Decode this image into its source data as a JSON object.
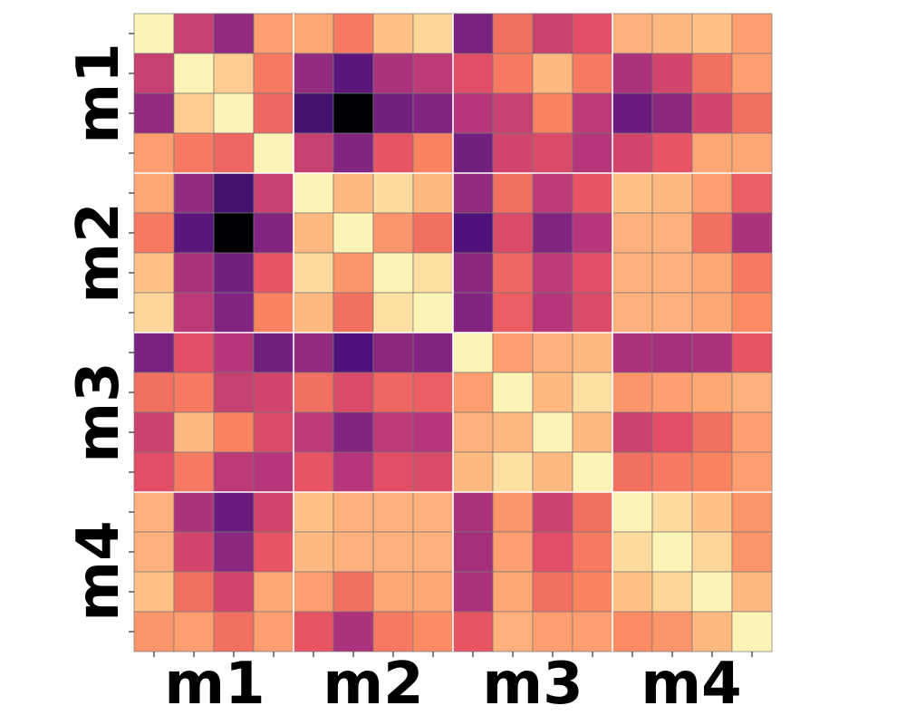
{
  "chart_data": {
    "type": "heatmap",
    "title": "",
    "xlabel": "",
    "ylabel": "",
    "colormap": "magma",
    "value_range": [
      0,
      1
    ],
    "block_labels": [
      "m1",
      "m2",
      "m3",
      "m4"
    ],
    "group_size": 4,
    "grid_color": "#777777",
    "block_separator_color": "#ffffff",
    "values": [
      [
        0.98,
        0.55,
        0.42,
        0.8,
        0.82,
        0.72,
        0.88,
        0.92,
        0.36,
        0.7,
        0.56,
        0.62,
        0.84,
        0.86,
        0.88,
        0.8
      ],
      [
        0.55,
        0.98,
        0.9,
        0.72,
        0.42,
        0.28,
        0.48,
        0.52,
        0.62,
        0.72,
        0.86,
        0.72,
        0.48,
        0.58,
        0.7,
        0.8
      ],
      [
        0.42,
        0.9,
        0.98,
        0.68,
        0.22,
        0.0,
        0.34,
        0.38,
        0.5,
        0.55,
        0.74,
        0.52,
        0.32,
        0.4,
        0.58,
        0.7
      ],
      [
        0.8,
        0.72,
        0.68,
        0.98,
        0.55,
        0.38,
        0.64,
        0.74,
        0.34,
        0.58,
        0.6,
        0.5,
        0.58,
        0.64,
        0.82,
        0.82
      ],
      [
        0.82,
        0.42,
        0.22,
        0.55,
        0.98,
        0.86,
        0.93,
        0.86,
        0.42,
        0.7,
        0.52,
        0.64,
        0.88,
        0.86,
        0.8,
        0.66
      ],
      [
        0.72,
        0.28,
        0.0,
        0.38,
        0.86,
        0.98,
        0.78,
        0.7,
        0.25,
        0.6,
        0.38,
        0.5,
        0.84,
        0.84,
        0.7,
        0.48
      ],
      [
        0.88,
        0.48,
        0.34,
        0.64,
        0.93,
        0.78,
        0.98,
        0.94,
        0.4,
        0.68,
        0.52,
        0.62,
        0.84,
        0.84,
        0.82,
        0.72
      ],
      [
        0.92,
        0.52,
        0.38,
        0.74,
        0.86,
        0.7,
        0.94,
        0.98,
        0.38,
        0.66,
        0.5,
        0.6,
        0.84,
        0.84,
        0.82,
        0.76
      ],
      [
        0.36,
        0.62,
        0.5,
        0.34,
        0.42,
        0.25,
        0.4,
        0.38,
        0.98,
        0.8,
        0.84,
        0.86,
        0.48,
        0.46,
        0.48,
        0.64
      ],
      [
        0.7,
        0.72,
        0.55,
        0.58,
        0.7,
        0.6,
        0.68,
        0.66,
        0.8,
        0.98,
        0.86,
        0.94,
        0.78,
        0.8,
        0.82,
        0.84
      ],
      [
        0.56,
        0.86,
        0.74,
        0.6,
        0.52,
        0.38,
        0.52,
        0.5,
        0.84,
        0.86,
        0.98,
        0.86,
        0.56,
        0.62,
        0.7,
        0.8
      ],
      [
        0.62,
        0.72,
        0.52,
        0.5,
        0.64,
        0.5,
        0.62,
        0.6,
        0.86,
        0.94,
        0.86,
        0.98,
        0.7,
        0.72,
        0.74,
        0.8
      ],
      [
        0.84,
        0.48,
        0.32,
        0.58,
        0.88,
        0.84,
        0.84,
        0.84,
        0.48,
        0.78,
        0.56,
        0.7,
        0.98,
        0.93,
        0.88,
        0.78
      ],
      [
        0.84,
        0.58,
        0.4,
        0.64,
        0.86,
        0.84,
        0.84,
        0.84,
        0.46,
        0.8,
        0.62,
        0.72,
        0.93,
        0.98,
        0.92,
        0.78
      ],
      [
        0.88,
        0.7,
        0.58,
        0.82,
        0.8,
        0.7,
        0.82,
        0.82,
        0.48,
        0.82,
        0.7,
        0.74,
        0.88,
        0.92,
        0.98,
        0.86
      ],
      [
        0.78,
        0.8,
        0.7,
        0.8,
        0.64,
        0.48,
        0.72,
        0.76,
        0.64,
        0.84,
        0.8,
        0.8,
        0.76,
        0.78,
        0.86,
        0.98
      ]
    ]
  }
}
